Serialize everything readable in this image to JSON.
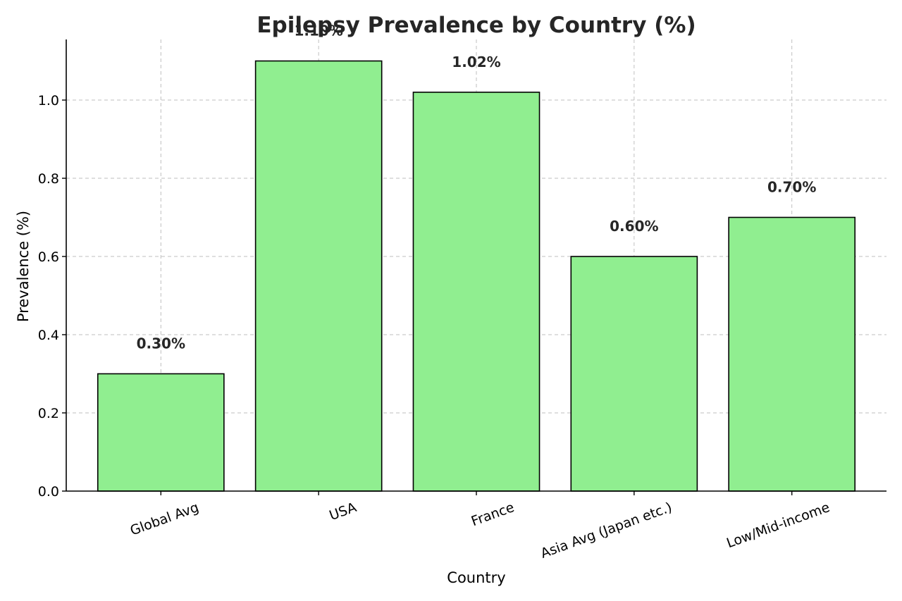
{
  "chart_data": {
    "type": "bar",
    "title": "Epilepsy Prevalence by Country (%)",
    "xlabel": "Country",
    "ylabel": "Prevalence (%)",
    "categories": [
      "Global Avg",
      "USA",
      "France",
      "Asia Avg (Japan etc.)",
      "Low/Mid-income"
    ],
    "values": [
      0.3,
      1.1,
      1.02,
      0.6,
      0.7
    ],
    "data_labels": [
      "0.30%",
      "1.10%",
      "1.02%",
      "0.60%",
      "0.70%"
    ],
    "ylim": [
      0,
      1.155
    ],
    "yticks": [
      0.0,
      0.2,
      0.4,
      0.6,
      0.8,
      1.0
    ],
    "ytick_labels": [
      "0.0",
      "0.2",
      "0.4",
      "0.6",
      "0.8",
      "1.0"
    ],
    "grid": true,
    "bar_color": "#90ee90",
    "bar_edge_color": "#000000",
    "xtick_rotation": -20
  }
}
